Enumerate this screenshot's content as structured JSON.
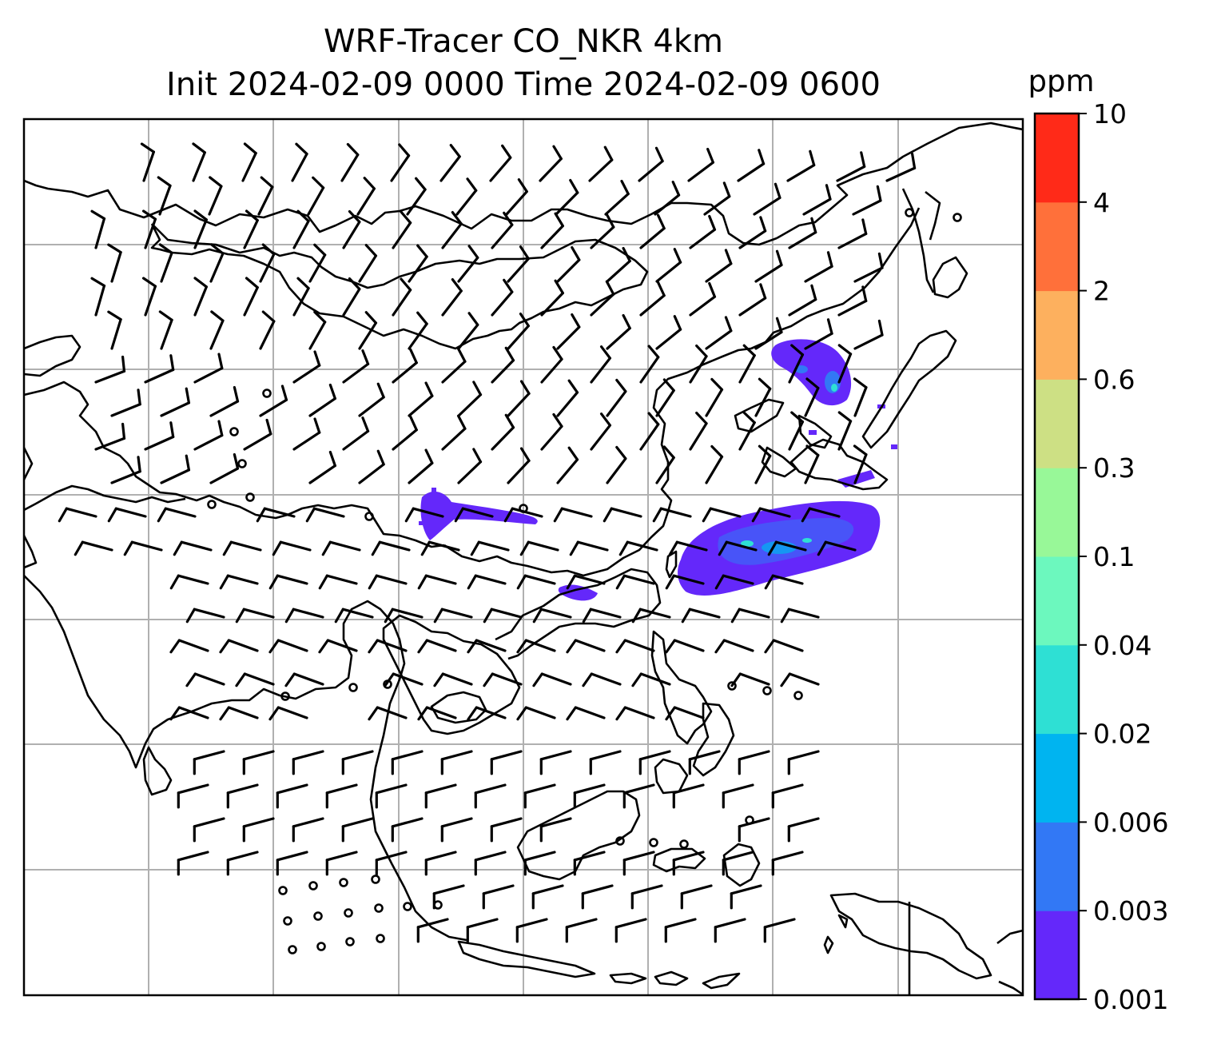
{
  "title": {
    "line1": "WRF-Tracer CO_NKR 4km",
    "line2": "Init 2024-02-09 0000 Time 2024-02-09 0600"
  },
  "colorbar": {
    "unit": "ppm",
    "levels": [
      "0.001",
      "0.003",
      "0.006",
      "0.02",
      "0.04",
      "0.1",
      "0.3",
      "0.6",
      "2",
      "4",
      "10"
    ],
    "colors": [
      "#6428fa",
      "#3278f5",
      "#00b4f0",
      "#2ee0d4",
      "#6cf8be",
      "#98f898",
      "#cde084",
      "#fdb05e",
      "#ff703a",
      "#ff2a18"
    ]
  },
  "map": {
    "grid_color": "#b0b0b0",
    "coastline_color": "#000000",
    "barb_color": "#000000"
  }
}
